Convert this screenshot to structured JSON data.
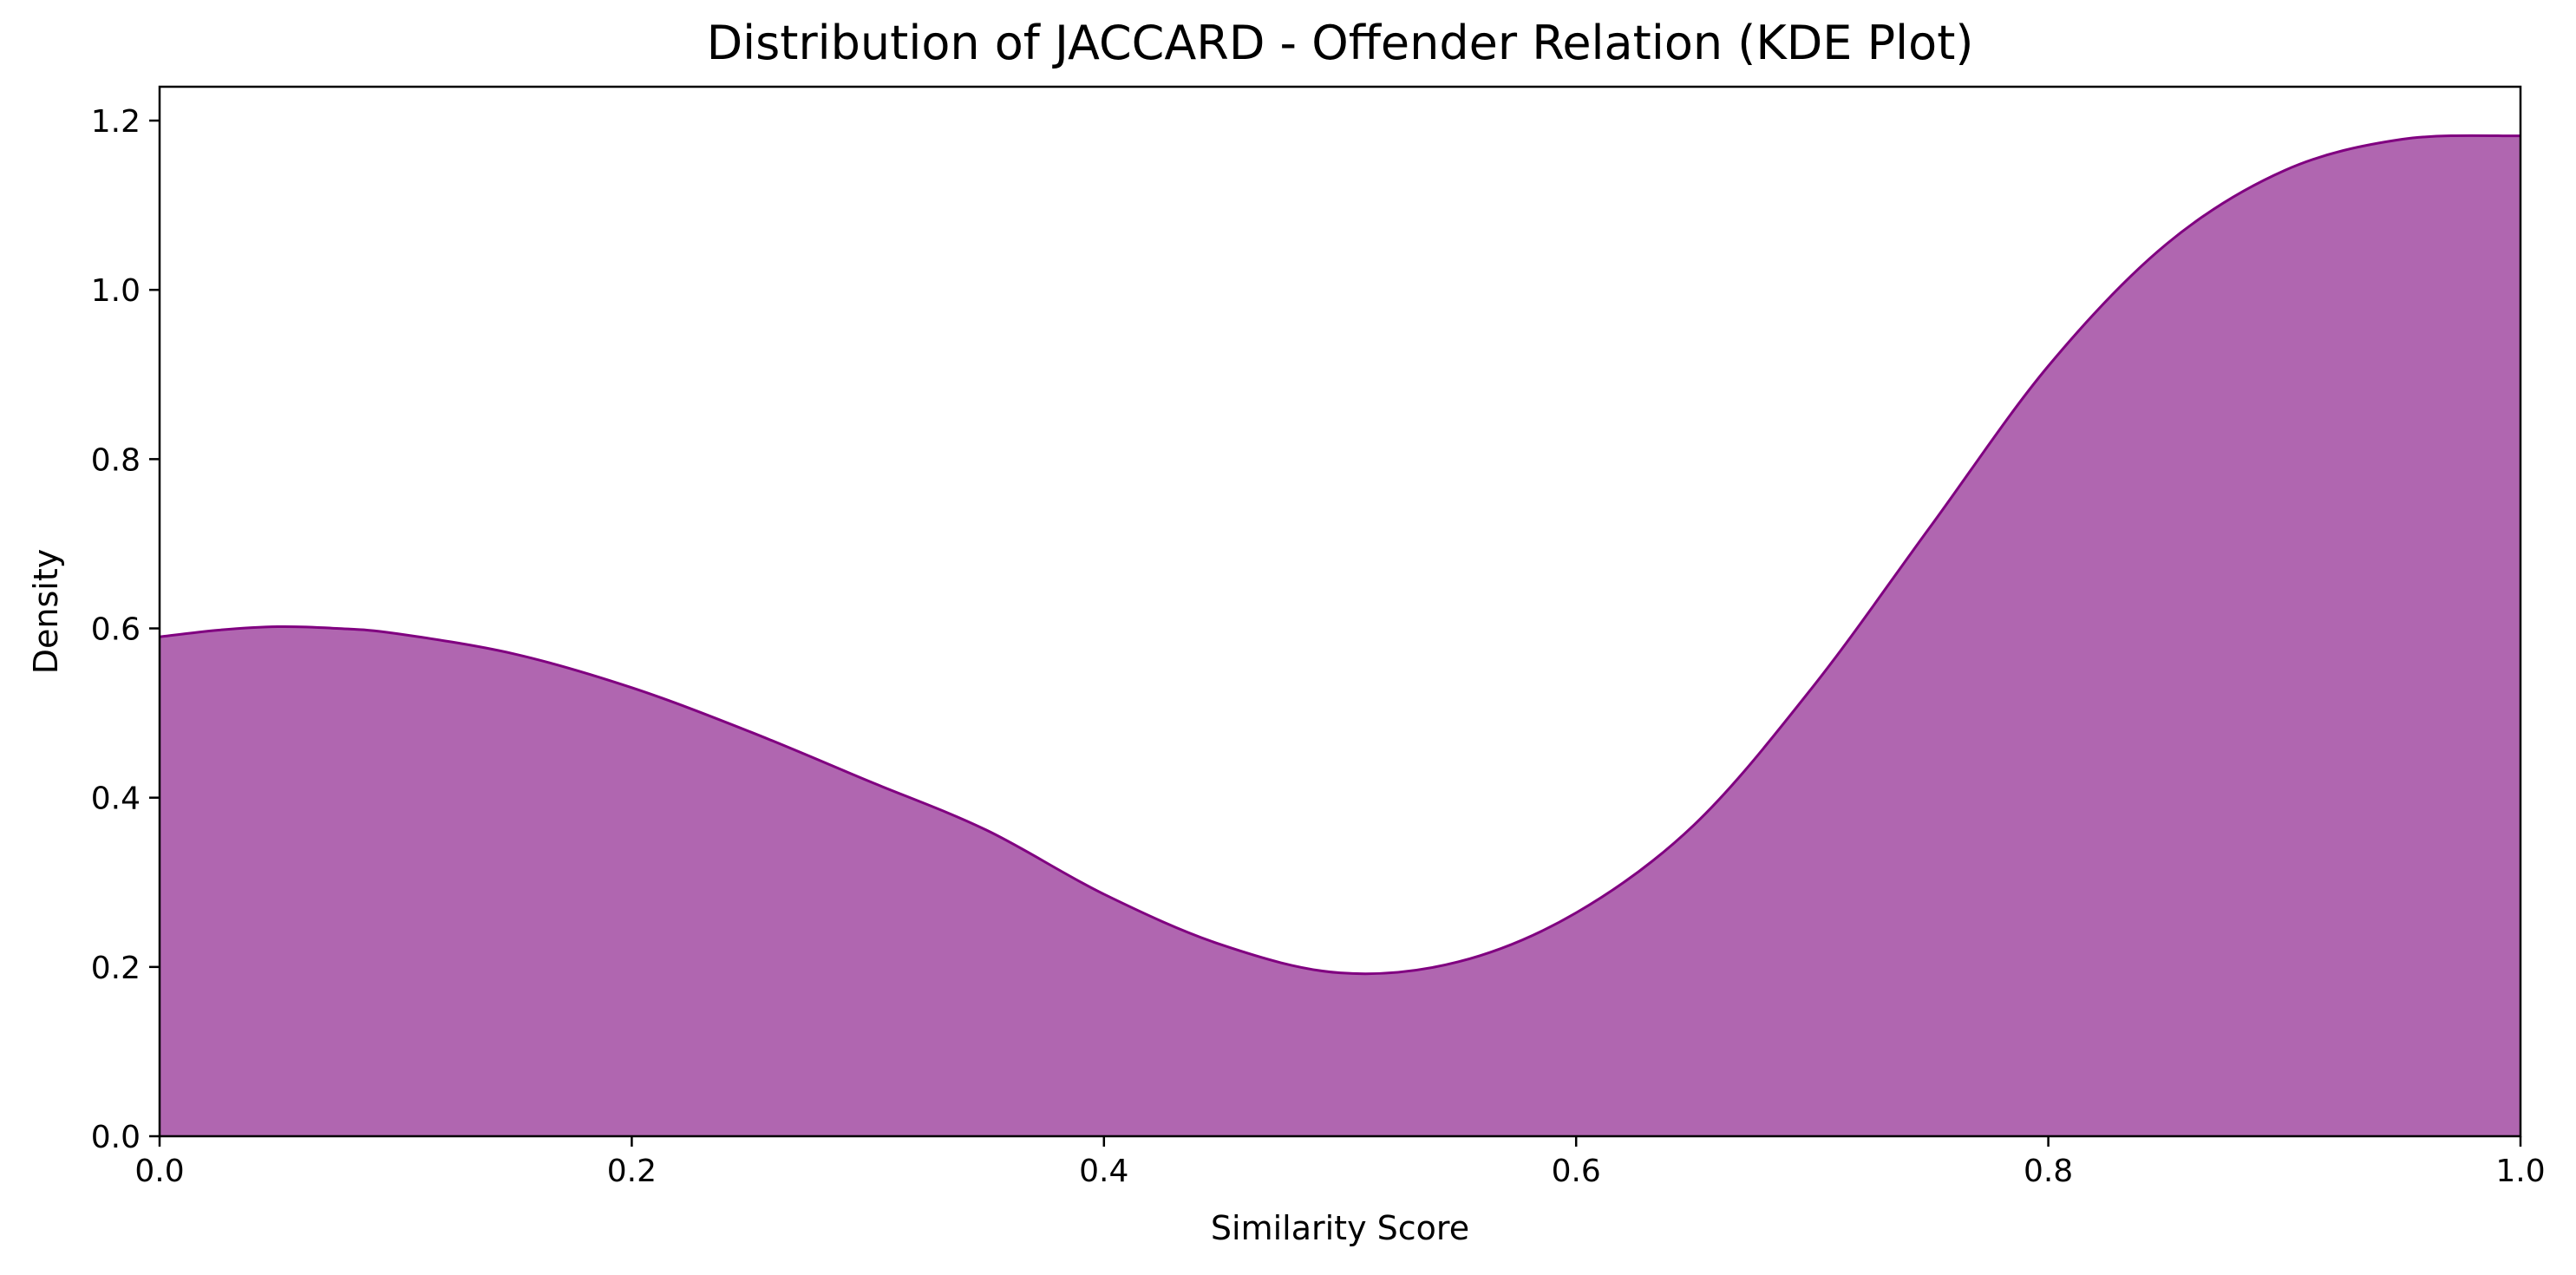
{
  "chart_data": {
    "type": "area",
    "title": "Distribution of JACCARD - Offender Relation (KDE Plot)",
    "xlabel": "Similarity Score",
    "ylabel": "Density",
    "xlim": [
      0.0,
      1.0
    ],
    "ylim": [
      0.0,
      1.24
    ],
    "xticks": [
      0.0,
      0.2,
      0.4,
      0.6,
      0.8,
      1.0
    ],
    "xtick_labels": [
      "0.0",
      "0.2",
      "0.4",
      "0.6",
      "0.8",
      "1.0"
    ],
    "yticks": [
      0.0,
      0.2,
      0.4,
      0.6,
      0.8,
      1.0,
      1.2
    ],
    "ytick_labels": [
      "0.0",
      "0.2",
      "0.4",
      "0.6",
      "0.8",
      "1.0",
      "1.2"
    ],
    "grid": false,
    "legend": "none",
    "fill_color": "#b066b0",
    "line_color": "#800080",
    "series": [
      {
        "x": [
          0.0,
          0.025,
          0.05,
          0.075,
          0.1,
          0.15,
          0.2,
          0.25,
          0.3,
          0.35,
          0.4,
          0.45,
          0.5,
          0.55,
          0.6,
          0.65,
          0.7,
          0.75,
          0.8,
          0.85,
          0.9,
          0.95,
          1.0
        ],
        "y": [
          0.59,
          0.598,
          0.602,
          0.6,
          0.594,
          0.57,
          0.53,
          0.478,
          0.42,
          0.362,
          0.286,
          0.226,
          0.193,
          0.206,
          0.264,
          0.368,
          0.53,
          0.72,
          0.91,
          1.054,
          1.141,
          1.178,
          1.182
        ]
      }
    ]
  }
}
